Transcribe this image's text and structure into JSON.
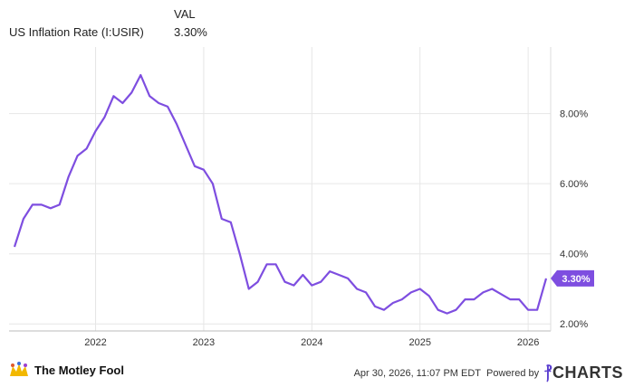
{
  "legend": {
    "column_header": "VAL",
    "series_name": "US Inflation Rate (I:USIR)",
    "series_value": "3.30%"
  },
  "colors": {
    "series": "#7e4ee0",
    "grid": "#e6e6e6",
    "label_bg": "#7e4ee0",
    "label_text": "#ffffff"
  },
  "footer": {
    "brand": "The Motley Fool",
    "timestamp": "Apr 30, 2026, 11:07 PM EDT",
    "powered_by": "Powered by",
    "ycharts": "YCHARTS"
  },
  "chart_data": {
    "type": "line",
    "title": "",
    "xlabel": "",
    "ylabel": "",
    "x_ticks": [
      "2022",
      "2023",
      "2024",
      "2025",
      "2026"
    ],
    "y_ticks": [
      "2.00%",
      "4.00%",
      "6.00%",
      "8.00%"
    ],
    "ylim": [
      1.8,
      9.9
    ],
    "xlim": [
      "2021-04",
      "2026-03"
    ],
    "grid": true,
    "last_value_label": "3.30%",
    "series": [
      {
        "name": "US Inflation Rate (I:USIR)",
        "x": [
          "2021-04",
          "2021-05",
          "2021-06",
          "2021-07",
          "2021-08",
          "2021-09",
          "2021-10",
          "2021-11",
          "2021-12",
          "2022-01",
          "2022-02",
          "2022-03",
          "2022-04",
          "2022-05",
          "2022-06",
          "2022-07",
          "2022-08",
          "2022-09",
          "2022-10",
          "2022-11",
          "2022-12",
          "2023-01",
          "2023-02",
          "2023-03",
          "2023-04",
          "2023-05",
          "2023-06",
          "2023-07",
          "2023-08",
          "2023-09",
          "2023-10",
          "2023-11",
          "2023-12",
          "2024-01",
          "2024-02",
          "2024-03",
          "2024-04",
          "2024-05",
          "2024-06",
          "2024-07",
          "2024-08",
          "2024-09",
          "2024-10",
          "2024-11",
          "2024-12",
          "2025-01",
          "2025-02",
          "2025-03",
          "2025-04",
          "2025-05",
          "2025-06",
          "2025-07",
          "2025-08",
          "2025-09",
          "2025-10",
          "2025-11",
          "2025-12",
          "2026-01",
          "2026-02",
          "2026-03"
        ],
        "values": [
          4.2,
          5.0,
          5.4,
          5.4,
          5.3,
          5.4,
          6.2,
          6.8,
          7.0,
          7.5,
          7.9,
          8.5,
          8.3,
          8.6,
          9.1,
          8.5,
          8.3,
          8.2,
          7.7,
          7.1,
          6.5,
          6.4,
          6.0,
          5.0,
          4.9,
          4.0,
          3.0,
          3.2,
          3.7,
          3.7,
          3.2,
          3.1,
          3.4,
          3.1,
          3.2,
          3.5,
          3.4,
          3.3,
          3.0,
          2.9,
          2.5,
          2.4,
          2.6,
          2.7,
          2.9,
          3.0,
          2.8,
          2.4,
          2.3,
          2.4,
          2.7,
          2.7,
          2.9,
          3.0,
          2.85,
          2.7,
          2.7,
          2.4,
          2.4,
          3.3
        ]
      }
    ]
  }
}
